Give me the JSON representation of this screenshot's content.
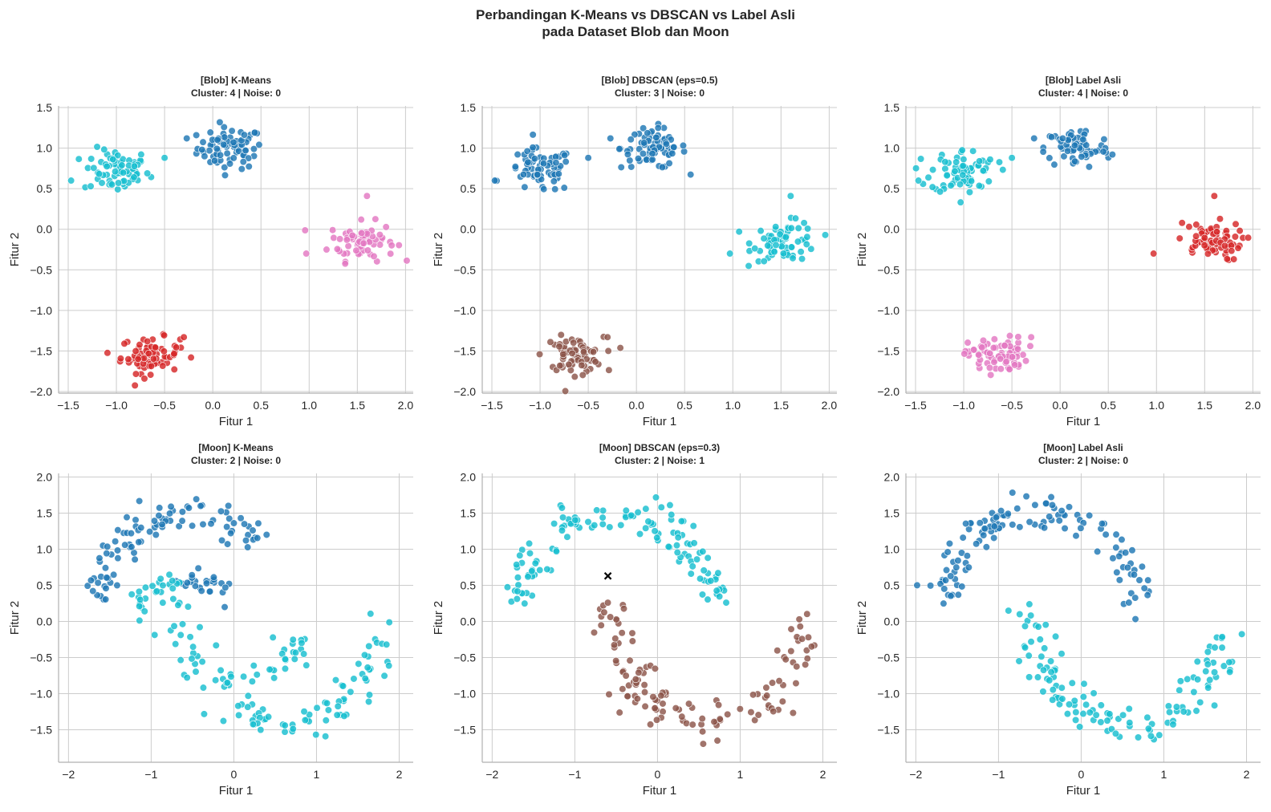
{
  "figure": {
    "title_line1": "Perbandingan K-Means vs DBSCAN vs Label Asli",
    "title_line2": "pada Dataset Blob dan Moon"
  },
  "colors": {
    "blue": "#1f77b4",
    "cyan": "#17becf",
    "pink": "#e377c2",
    "red": "#d62728",
    "brown": "#8c564b",
    "noise": "#000000",
    "grid": "#cccccc",
    "axis": "#b0b0b0"
  },
  "chart_data": [
    {
      "type": "scatter",
      "title_line1": "[Blob] K-Means",
      "title_line2": "Cluster: 4 | Noise: 0",
      "xlabel": "Fitur 1",
      "ylabel": "Fitur 2",
      "xlim": [
        -1.6,
        2.08
      ],
      "ylim": [
        -2.02,
        1.52
      ],
      "xticks": [
        -1.5,
        -1.0,
        -0.5,
        0.0,
        0.5,
        1.0,
        1.5,
        2.0
      ],
      "xticklabels": [
        "−1.5",
        "−1.0",
        "−0.5",
        "0.0",
        "0.5",
        "1.0",
        "1.5",
        "2.0"
      ],
      "yticks": [
        1.5,
        1.0,
        0.5,
        0.0,
        -0.5,
        -1.0,
        -1.5,
        -2.0
      ],
      "yticklabels": [
        "1.5",
        "1.0",
        "0.5",
        "0.0",
        "−0.5",
        "−1.0",
        "−1.5",
        "−2.0"
      ],
      "grid": true,
      "series": [
        {
          "color": "blue",
          "cluster": {
            "center": [
              0.18,
              1.0
            ],
            "spread": [
              0.2,
              0.15
            ],
            "n": 75,
            "extra": [
              [
                -0.27,
                1.12
              ]
            ]
          }
        },
        {
          "color": "cyan",
          "cluster": {
            "center": [
              -1.0,
              0.72
            ],
            "spread": [
              0.2,
              0.16
            ],
            "n": 70,
            "extra": [
              [
                -1.47,
                0.6
              ],
              [
                -0.5,
                0.88
              ]
            ]
          }
        },
        {
          "color": "pink",
          "cluster": {
            "center": [
              1.55,
              -0.15
            ],
            "spread": [
              0.2,
              0.14
            ],
            "n": 70,
            "extra": [
              [
                0.97,
                -0.3
              ],
              [
                1.6,
                0.41
              ]
            ]
          }
        },
        {
          "color": "red",
          "cluster": {
            "center": [
              -0.65,
              -1.55
            ],
            "spread": [
              0.18,
              0.13
            ],
            "n": 75,
            "extra": [
              [
                -0.3,
                -1.33
              ]
            ]
          }
        }
      ]
    },
    {
      "type": "scatter",
      "title_line1": "[Blob] DBSCAN (eps=0.5)",
      "title_line2": "Cluster: 3 | Noise: 0",
      "xlabel": "Fitur 1",
      "ylabel": "Fitur 2",
      "xlim": [
        -1.6,
        2.08
      ],
      "ylim": [
        -2.02,
        1.52
      ],
      "xticks": [
        -1.5,
        -1.0,
        -0.5,
        0.0,
        0.5,
        1.0,
        1.5,
        2.0
      ],
      "xticklabels": [
        "−1.5",
        "−1.0",
        "−0.5",
        "0.0",
        "0.5",
        "1.0",
        "1.5",
        "2.0"
      ],
      "yticks": [
        1.5,
        1.0,
        0.5,
        0.0,
        -0.5,
        -1.0,
        -1.5,
        -2.0
      ],
      "yticklabels": [
        "1.5",
        "1.0",
        "0.5",
        "0.0",
        "−0.5",
        "−1.0",
        "−1.5",
        "−2.0"
      ],
      "grid": true,
      "series": [
        {
          "color": "blue",
          "cluster": {
            "center": [
              0.18,
              1.0
            ],
            "spread": [
              0.2,
              0.15
            ],
            "n": 75,
            "extra": [
              [
                -0.27,
                1.12
              ]
            ]
          }
        },
        {
          "color": "blue",
          "cluster": {
            "center": [
              -1.0,
              0.72
            ],
            "spread": [
              0.2,
              0.16
            ],
            "n": 70,
            "extra": [
              [
                -1.47,
                0.6
              ],
              [
                -0.5,
                0.88
              ]
            ]
          }
        },
        {
          "color": "cyan",
          "cluster": {
            "center": [
              1.55,
              -0.15
            ],
            "spread": [
              0.2,
              0.14
            ],
            "n": 70,
            "extra": [
              [
                0.97,
                -0.3
              ],
              [
                1.6,
                0.41
              ]
            ]
          }
        },
        {
          "color": "brown",
          "cluster": {
            "center": [
              -0.65,
              -1.55
            ],
            "spread": [
              0.18,
              0.13
            ],
            "n": 75,
            "extra": [
              [
                -0.3,
                -1.33
              ]
            ]
          }
        }
      ]
    },
    {
      "type": "scatter",
      "title_line1": "[Blob] Label Asli",
      "title_line2": "Cluster: 4 | Noise: 0",
      "xlabel": "Fitur 1",
      "ylabel": "Fitur 2",
      "xlim": [
        -1.6,
        2.08
      ],
      "ylim": [
        -2.02,
        1.52
      ],
      "xticks": [
        -1.5,
        -1.0,
        -0.5,
        0.0,
        0.5,
        1.0,
        1.5,
        2.0
      ],
      "xticklabels": [
        "−1.5",
        "−1.0",
        "−0.5",
        "0.0",
        "0.5",
        "1.0",
        "1.5",
        "2.0"
      ],
      "yticks": [
        1.5,
        1.0,
        0.5,
        0.0,
        -0.5,
        -1.0,
        -1.5,
        -2.0
      ],
      "yticklabels": [
        "1.5",
        "1.0",
        "0.5",
        "0.0",
        "−0.5",
        "−1.0",
        "−1.5",
        "−2.0"
      ],
      "grid": true,
      "series": [
        {
          "color": "blue",
          "cluster": {
            "center": [
              0.18,
              1.0
            ],
            "spread": [
              0.2,
              0.15
            ],
            "n": 75,
            "extra": [
              [
                -0.27,
                1.12
              ]
            ]
          }
        },
        {
          "color": "cyan",
          "cluster": {
            "center": [
              -1.0,
              0.72
            ],
            "spread": [
              0.2,
              0.16
            ],
            "n": 70,
            "extra": [
              [
                -1.47,
                0.6
              ],
              [
                -0.5,
                0.88
              ]
            ]
          }
        },
        {
          "color": "red",
          "cluster": {
            "center": [
              1.55,
              -0.15
            ],
            "spread": [
              0.2,
              0.14
            ],
            "n": 70,
            "extra": [
              [
                0.97,
                -0.3
              ],
              [
                1.6,
                0.41
              ]
            ]
          }
        },
        {
          "color": "pink",
          "cluster": {
            "center": [
              -0.65,
              -1.55
            ],
            "spread": [
              0.18,
              0.13
            ],
            "n": 75,
            "extra": [
              [
                -0.3,
                -1.33
              ]
            ]
          }
        }
      ]
    },
    {
      "type": "scatter",
      "title_line1": "[Moon] K-Means",
      "title_line2": "Cluster: 2 | Noise: 0",
      "xlabel": "Fitur 1",
      "ylabel": "Fitur 2",
      "xlim": [
        -2.12,
        2.17
      ],
      "ylim": [
        -1.95,
        2.05
      ],
      "xticks": [
        -2,
        -1,
        0,
        1,
        2
      ],
      "xticklabels": [
        "−2",
        "−1",
        "0",
        "1",
        "2"
      ],
      "yticks": [
        2.0,
        1.5,
        1.0,
        0.5,
        0.0,
        -0.5,
        -1.0,
        -1.5
      ],
      "yticklabels": [
        "2.0",
        "1.5",
        "1.0",
        "0.5",
        "0.0",
        "−0.5",
        "−1.0",
        "−1.5"
      ],
      "grid": true,
      "series": [
        {
          "color": "blue",
          "moon": {
            "arc": "upper",
            "center": [
              -0.5,
              0.0
            ],
            "radius": 1.2,
            "radius_y": 1.5,
            "range": [
              0.06,
              0.73
            ],
            "n": 95,
            "noise": 0.12
          }
        },
        {
          "color": "blue",
          "moon": {
            "arc": "upper",
            "center": [
              -0.5,
              0.0
            ],
            "radius": 0.62,
            "radius_y": 0.55,
            "range": [
              0.46,
              0.72
            ],
            "n": 25,
            "noise": 0.1
          }
        },
        {
          "color": "cyan",
          "moon": {
            "arc": "upper",
            "center": [
              -0.5,
              0.0
            ],
            "radius": 0.78,
            "radius_y": 0.55,
            "range": [
              0.0,
              0.45
            ],
            "n": 25,
            "noise": 0.1
          }
        },
        {
          "color": "cyan",
          "moon": {
            "arc": "lower",
            "center": [
              0.6,
              0.25
            ],
            "radius": 1.2,
            "radius_y": 1.65,
            "range": [
              0.0,
              0.95
            ],
            "n": 105,
            "noise": 0.13
          }
        },
        {
          "color": "cyan",
          "moon": {
            "arc": "lower",
            "center": [
              0.0,
              -0.3
            ],
            "radius": 0.78,
            "radius_y": 0.4,
            "range": [
              0.56,
              0.99
            ],
            "n": 25,
            "noise": 0.1
          }
        }
      ]
    },
    {
      "type": "scatter",
      "title_line1": "[Moon] DBSCAN (eps=0.3)",
      "title_line2": "Cluster: 2 | Noise: 1",
      "xlabel": "Fitur 1",
      "ylabel": "Fitur 2",
      "xlim": [
        -2.12,
        2.17
      ],
      "ylim": [
        -1.95,
        2.05
      ],
      "xticks": [
        -2,
        -1,
        0,
        1,
        2
      ],
      "xticklabels": [
        "−2",
        "−1",
        "0",
        "1",
        "2"
      ],
      "yticks": [
        2.0,
        1.5,
        1.0,
        0.5,
        0.0,
        -0.5,
        -1.0,
        -1.5
      ],
      "yticklabels": [
        "2.0",
        "1.5",
        "1.0",
        "0.5",
        "0.0",
        "−0.5",
        "−1.0",
        "−1.5"
      ],
      "grid": true,
      "series": [
        {
          "color": "cyan",
          "moon": {
            "arc": "upper",
            "center": [
              -0.5,
              0.0
            ],
            "radius": 1.2,
            "radius_y": 1.5,
            "range": [
              0.06,
              0.94
            ],
            "n": 125,
            "noise": 0.12
          }
        },
        {
          "color": "brown",
          "moon": {
            "arc": "lower",
            "center": [
              0.6,
              0.25
            ],
            "radius": 1.2,
            "radius_y": 1.65,
            "range": [
              0.0,
              0.95
            ],
            "n": 125,
            "noise": 0.13
          }
        },
        {
          "color": "noise",
          "marker": "x",
          "points": [
            [
              -0.6,
              0.63
            ]
          ]
        }
      ]
    },
    {
      "type": "scatter",
      "title_line1": "[Moon] Label Asli",
      "title_line2": "Cluster: 2 | Noise: 0",
      "xlabel": "Fitur 1",
      "ylabel": "Fitur 2",
      "xlim": [
        -2.12,
        2.17
      ],
      "ylim": [
        -1.95,
        2.05
      ],
      "xticks": [
        -2,
        -1,
        0,
        1,
        2
      ],
      "xticklabels": [
        "−2",
        "−1",
        "0",
        "1",
        "2"
      ],
      "yticks": [
        2.0,
        1.5,
        1.0,
        0.5,
        0.0,
        -0.5,
        -1.0,
        -1.5
      ],
      "yticklabels": [
        "2.0",
        "1.5",
        "1.0",
        "0.5",
        "0.0",
        "−0.5",
        "−1.0",
        "−1.5"
      ],
      "grid": true,
      "series": [
        {
          "color": "blue",
          "moon": {
            "arc": "upper",
            "center": [
              -0.5,
              0.0
            ],
            "radius": 1.2,
            "radius_y": 1.5,
            "range": [
              0.06,
              0.94
            ],
            "n": 125,
            "noise": 0.12
          }
        },
        {
          "color": "cyan",
          "moon": {
            "arc": "lower",
            "center": [
              0.6,
              0.25
            ],
            "radius": 1.2,
            "radius_y": 1.65,
            "range": [
              0.0,
              0.95
            ],
            "n": 125,
            "noise": 0.13
          }
        }
      ]
    }
  ]
}
